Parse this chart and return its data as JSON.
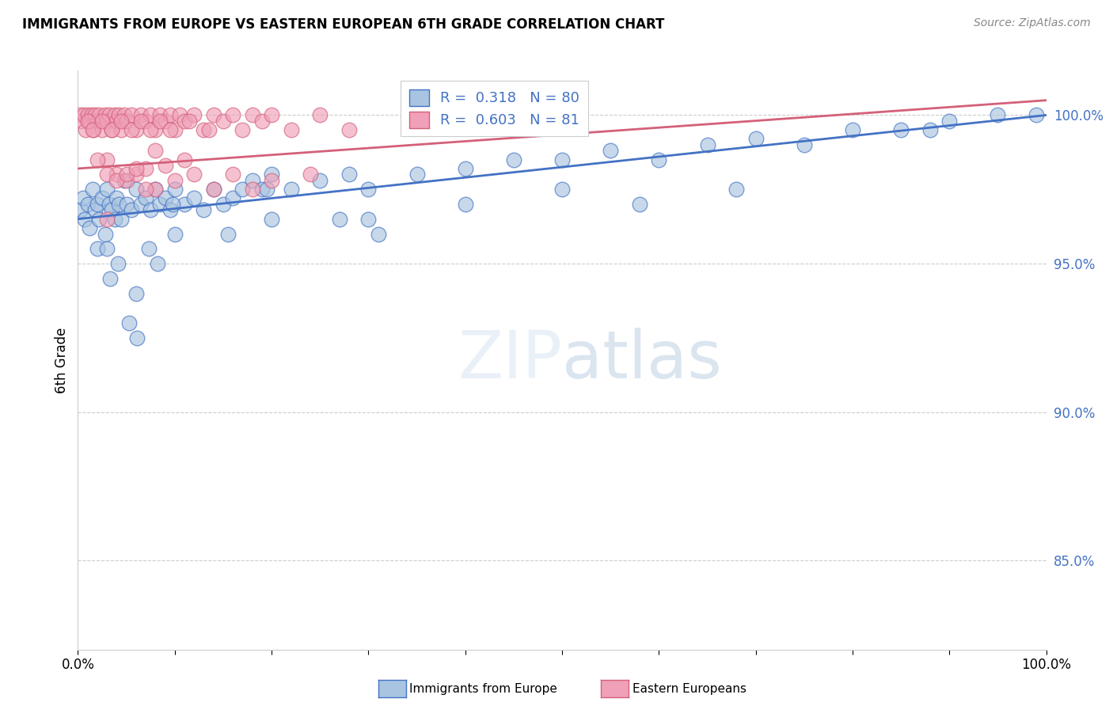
{
  "title": "IMMIGRANTS FROM EUROPE VS EASTERN EUROPEAN 6TH GRADE CORRELATION CHART",
  "source": "Source: ZipAtlas.com",
  "ylabel": "6th Grade",
  "y_ticks": [
    100.0,
    95.0,
    90.0,
    85.0
  ],
  "xmin": 0.0,
  "xmax": 100.0,
  "ymin": 82.0,
  "ymax": 101.5,
  "blue_R": 0.318,
  "blue_N": 80,
  "pink_R": 0.603,
  "pink_N": 81,
  "blue_color": "#a8c4e0",
  "pink_color": "#f0a0b8",
  "blue_line_color": "#4472c4",
  "pink_line_color": "#d4607a",
  "legend_label_blue": "Immigrants from Europe",
  "legend_label_pink": "Eastern Europeans",
  "blue_line_start_y": 96.5,
  "blue_line_end_y": 100.0,
  "pink_line_start_y": 98.2,
  "pink_line_end_y": 100.5,
  "blue_scatter_x": [
    0.3,
    0.5,
    0.7,
    1.0,
    1.2,
    1.5,
    1.8,
    2.0,
    2.2,
    2.5,
    2.8,
    3.0,
    3.2,
    3.5,
    3.8,
    4.0,
    4.2,
    4.5,
    4.8,
    5.0,
    5.5,
    6.0,
    6.5,
    7.0,
    7.5,
    8.0,
    8.5,
    9.0,
    9.5,
    10.0,
    11.0,
    12.0,
    13.0,
    14.0,
    15.0,
    16.0,
    17.0,
    18.0,
    19.0,
    20.0,
    22.0,
    25.0,
    28.0,
    30.0,
    35.0,
    40.0,
    45.0,
    50.0,
    55.0,
    60.0,
    65.0,
    70.0,
    75.0,
    80.0,
    85.0,
    90.0,
    95.0,
    99.0,
    2.0,
    3.3,
    4.1,
    5.3,
    6.1,
    7.3,
    8.2,
    9.8,
    15.5,
    19.5,
    27.0,
    31.0,
    40.0,
    58.0,
    68.0,
    88.0,
    3.0,
    6.0,
    10.0,
    20.0,
    30.0,
    50.0
  ],
  "blue_scatter_y": [
    96.8,
    97.2,
    96.5,
    97.0,
    96.2,
    97.5,
    96.8,
    97.0,
    96.5,
    97.2,
    96.0,
    97.5,
    97.0,
    96.8,
    96.5,
    97.2,
    97.0,
    96.5,
    97.8,
    97.0,
    96.8,
    97.5,
    97.0,
    97.2,
    96.8,
    97.5,
    97.0,
    97.2,
    96.8,
    97.5,
    97.0,
    97.2,
    96.8,
    97.5,
    97.0,
    97.2,
    97.5,
    97.8,
    97.5,
    98.0,
    97.5,
    97.8,
    98.0,
    97.5,
    98.0,
    98.2,
    98.5,
    98.5,
    98.8,
    98.5,
    99.0,
    99.2,
    99.0,
    99.5,
    99.5,
    99.8,
    100.0,
    100.0,
    95.5,
    94.5,
    95.0,
    93.0,
    92.5,
    95.5,
    95.0,
    97.0,
    96.0,
    97.5,
    96.5,
    96.0,
    97.0,
    97.0,
    97.5,
    99.5,
    95.5,
    94.0,
    96.0,
    96.5,
    96.5,
    97.5
  ],
  "pink_scatter_x": [
    0.2,
    0.4,
    0.6,
    0.8,
    1.0,
    1.2,
    1.4,
    1.6,
    1.8,
    2.0,
    2.2,
    2.5,
    2.8,
    3.0,
    3.2,
    3.5,
    3.8,
    4.0,
    4.2,
    4.5,
    4.8,
    5.0,
    5.5,
    6.0,
    6.5,
    7.0,
    7.5,
    8.0,
    8.5,
    9.0,
    9.5,
    10.0,
    10.5,
    11.0,
    12.0,
    13.0,
    14.0,
    15.0,
    16.0,
    17.0,
    18.0,
    19.0,
    20.0,
    22.0,
    25.0,
    28.0,
    1.0,
    1.5,
    2.5,
    3.5,
    4.5,
    5.5,
    6.5,
    7.5,
    8.5,
    9.5,
    11.5,
    13.5,
    3.0,
    4.0,
    5.0,
    6.0,
    7.0,
    8.0,
    2.0,
    3.0,
    4.0,
    5.0,
    6.0,
    7.0,
    8.0,
    9.0,
    10.0,
    11.0,
    12.0,
    14.0,
    16.0,
    18.0,
    20.0,
    24.0,
    3.0
  ],
  "pink_scatter_y": [
    100.0,
    99.8,
    100.0,
    99.5,
    100.0,
    99.8,
    100.0,
    99.5,
    100.0,
    99.8,
    100.0,
    99.5,
    100.0,
    99.8,
    100.0,
    99.5,
    100.0,
    99.8,
    100.0,
    99.5,
    100.0,
    99.8,
    100.0,
    99.5,
    100.0,
    99.8,
    100.0,
    99.5,
    100.0,
    99.8,
    100.0,
    99.5,
    100.0,
    99.8,
    100.0,
    99.5,
    100.0,
    99.8,
    100.0,
    99.5,
    100.0,
    99.8,
    100.0,
    99.5,
    100.0,
    99.5,
    99.8,
    99.5,
    99.8,
    99.5,
    99.8,
    99.5,
    99.8,
    99.5,
    99.8,
    99.5,
    99.8,
    99.5,
    98.5,
    98.0,
    97.8,
    98.0,
    98.2,
    97.5,
    98.5,
    98.0,
    97.8,
    98.0,
    98.2,
    97.5,
    98.8,
    98.3,
    97.8,
    98.5,
    98.0,
    97.5,
    98.0,
    97.5,
    97.8,
    98.0,
    96.5
  ]
}
